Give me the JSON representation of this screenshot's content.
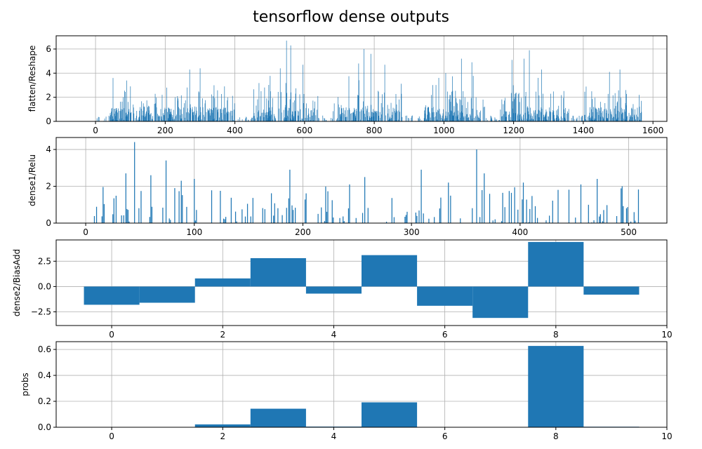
{
  "figure": {
    "title": "tensorflow dense outputs",
    "bar_color": "#1f77b4"
  },
  "chart_data": [
    {
      "type": "bar",
      "ylabel": "flatten/Reshape",
      "xlim": [
        -113,
        1640
      ],
      "ylim": [
        0,
        7.1
      ],
      "xticks": [
        0,
        200,
        400,
        600,
        800,
        1000,
        1200,
        1400,
        1600
      ],
      "yticks": [
        0,
        2,
        4,
        6
      ],
      "grid": true,
      "n_points": 1568,
      "bar_width": 1.0,
      "description": "1568 non-negative activations; values mostly 0-2 with peaks up to ~6.7; sparse near indices 0-40, 400-450, 640-680, 880-940, 1120-1160, 1360-1400",
      "peaks": [
        {
          "x": 50,
          "y": 3.6
        },
        {
          "x": 100,
          "y": 2.9
        },
        {
          "x": 270,
          "y": 4.3
        },
        {
          "x": 300,
          "y": 4.4
        },
        {
          "x": 340,
          "y": 3.0
        },
        {
          "x": 370,
          "y": 2.9
        },
        {
          "x": 530,
          "y": 4.4
        },
        {
          "x": 548,
          "y": 6.7
        },
        {
          "x": 560,
          "y": 6.3
        },
        {
          "x": 595,
          "y": 4.7
        },
        {
          "x": 755,
          "y": 4.8
        },
        {
          "x": 770,
          "y": 6.0
        },
        {
          "x": 790,
          "y": 5.6
        },
        {
          "x": 830,
          "y": 4.7
        },
        {
          "x": 1005,
          "y": 4.0
        },
        {
          "x": 1050,
          "y": 5.2
        },
        {
          "x": 1080,
          "y": 4.9
        },
        {
          "x": 1195,
          "y": 5.1
        },
        {
          "x": 1230,
          "y": 5.2
        },
        {
          "x": 1245,
          "y": 5.9
        },
        {
          "x": 1280,
          "y": 4.3
        },
        {
          "x": 1475,
          "y": 4.1
        },
        {
          "x": 1505,
          "y": 4.3
        },
        {
          "x": 1560,
          "y": 2.2
        }
      ]
    },
    {
      "type": "bar",
      "ylabel": "dense1/Relu",
      "xlim": [
        -27.2,
        535.2
      ],
      "ylim": [
        0,
        4.65
      ],
      "xticks": [
        0,
        100,
        200,
        300,
        400,
        500
      ],
      "yticks": [
        0,
        2,
        4
      ],
      "grid": true,
      "n_points": 512,
      "bar_width": 0.8,
      "description": "512 sparse ReLU activations, most zero, nonzero values mostly 0.5-2.5 with max ~4.4",
      "peaks": [
        {
          "x": 37,
          "y": 2.7
        },
        {
          "x": 45,
          "y": 4.4
        },
        {
          "x": 60,
          "y": 2.6
        },
        {
          "x": 74,
          "y": 3.4
        },
        {
          "x": 88,
          "y": 2.3
        },
        {
          "x": 100,
          "y": 2.4
        },
        {
          "x": 188,
          "y": 2.9
        },
        {
          "x": 243,
          "y": 2.1
        },
        {
          "x": 257,
          "y": 2.5
        },
        {
          "x": 309,
          "y": 2.9
        },
        {
          "x": 334,
          "y": 2.2
        },
        {
          "x": 360,
          "y": 4.0
        },
        {
          "x": 367,
          "y": 2.7
        },
        {
          "x": 403,
          "y": 2.2
        },
        {
          "x": 456,
          "y": 2.1
        },
        {
          "x": 471,
          "y": 2.4
        },
        {
          "x": 494,
          "y": 2.0
        }
      ]
    },
    {
      "type": "bar",
      "ylabel": "dense2/BiasAdd",
      "xlim": [
        -1.0,
        10.0
      ],
      "ylim": [
        -3.85,
        4.6
      ],
      "xticks": [
        0,
        2,
        4,
        6,
        8,
        10
      ],
      "yticks": [
        -2.5,
        0.0,
        2.5
      ],
      "ytick_labels": [
        "−2.5",
        "0.0",
        "2.5"
      ],
      "grid": true,
      "bar_width": 1.0,
      "categories": [
        0,
        1,
        2,
        3,
        4,
        5,
        6,
        7,
        8,
        9
      ],
      "values": [
        -1.8,
        -1.6,
        0.8,
        2.8,
        -0.7,
        3.1,
        -1.9,
        -3.1,
        4.4,
        -0.8
      ]
    },
    {
      "type": "bar",
      "ylabel": "probs",
      "xlim": [
        -1.0,
        10.0
      ],
      "ylim": [
        0,
        0.66
      ],
      "xticks": [
        0,
        2,
        4,
        6,
        8,
        10
      ],
      "yticks": [
        0.0,
        0.2,
        0.4,
        0.6
      ],
      "ytick_labels": [
        "0.0",
        "0.2",
        "0.4",
        "0.6"
      ],
      "grid": true,
      "bar_width": 1.0,
      "categories": [
        0,
        1,
        2,
        3,
        4,
        5,
        6,
        7,
        8,
        9
      ],
      "values": [
        0.0005,
        0.0006,
        0.022,
        0.143,
        0.005,
        0.192,
        0.0005,
        0.0002,
        0.627,
        0.004
      ]
    }
  ]
}
